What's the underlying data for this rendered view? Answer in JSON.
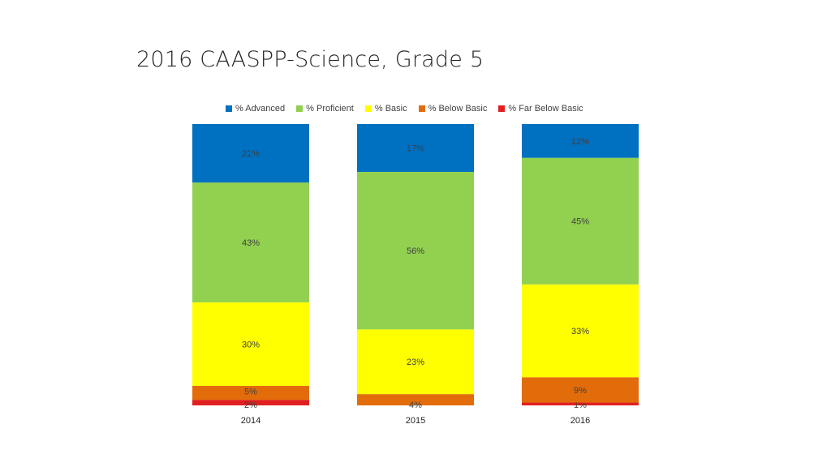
{
  "slide": {
    "title": "2016 CAASPP-Science, Grade 5"
  },
  "chart_data": {
    "type": "bar",
    "stacked": true,
    "percent_stacked": true,
    "categories": [
      "2014",
      "2015",
      "2016"
    ],
    "series": [
      {
        "name": "% Far Below Basic",
        "color": "#e02020",
        "values": [
          2,
          0,
          1
        ],
        "labels": [
          "2%",
          "",
          "1%"
        ]
      },
      {
        "name": "% Below Basic",
        "color": "#e36c0a",
        "values": [
          5,
          4,
          9
        ],
        "labels": [
          "5%",
          "4%",
          "9%"
        ]
      },
      {
        "name": "% Basic",
        "color": "#ffff00",
        "values": [
          30,
          23,
          33
        ],
        "labels": [
          "30%",
          "23%",
          "33%"
        ]
      },
      {
        "name": "% Proficient",
        "color": "#92d050",
        "values": [
          43,
          56,
          45
        ],
        "labels": [
          "43%",
          "56%",
          "45%"
        ]
      },
      {
        "name": "% Advanced",
        "color": "#0070c0",
        "values": [
          21,
          17,
          12
        ],
        "labels": [
          "21%",
          "17%",
          "12%"
        ]
      }
    ],
    "legend_order": [
      "% Advanced",
      "% Proficient",
      "% Basic",
      "% Below Basic",
      "% Far Below Basic"
    ],
    "legend_position": "top",
    "grid": false,
    "ylim": [
      0,
      100
    ]
  }
}
